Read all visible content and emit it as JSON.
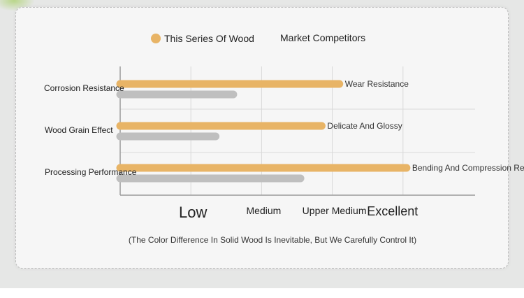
{
  "chart_data": {
    "type": "bar",
    "orientation": "horizontal",
    "categories": [
      "Corrosion Resistance",
      "Wood Grain Effect",
      "Processing Performance"
    ],
    "series": [
      {
        "name": "This Series Of Wood",
        "values": [
          3.1,
          2.85,
          4.05
        ],
        "color": "#e8b466",
        "bar_labels": [
          "Wear Resistance",
          "Delicate And Glossy",
          "Bending And Compression Resistance"
        ]
      },
      {
        "name": "Market Competitors",
        "values": [
          1.6,
          1.35,
          2.55
        ],
        "color": "#bfbfbf"
      }
    ],
    "x_ticks": [
      {
        "value": 1,
        "label": "Low",
        "size": "tick-low"
      },
      {
        "value": 2,
        "label": "Medium",
        "size": "tick-mid"
      },
      {
        "value": 3,
        "label": "Upper Medium",
        "size": "tick-mid"
      },
      {
        "value": 4,
        "label": "Excellent",
        "size": "tick-big"
      }
    ],
    "xlim": [
      0,
      5
    ],
    "grid": true,
    "legend_position": "top-center"
  },
  "footnote": "(The Color Difference In Solid Wood Is Inevitable, But We Carefully Control It)"
}
